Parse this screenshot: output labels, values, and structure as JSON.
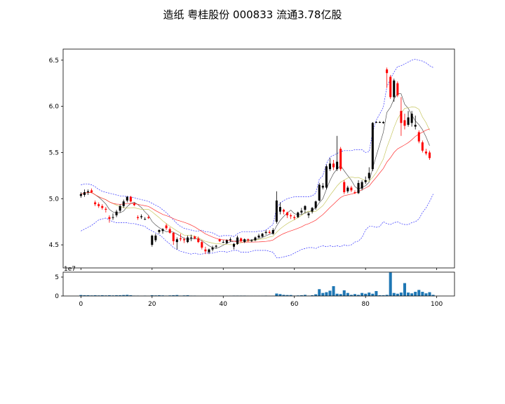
{
  "title": "造纸 粤桂股份 000833 流通3.78亿股",
  "chart_data": [
    {
      "type": "candlestick",
      "x_range": [
        -5,
        105
      ],
      "ylim": [
        4.25,
        6.62
      ],
      "yticks": [
        4.5,
        5.0,
        5.5,
        6.0,
        6.5
      ],
      "ytick_labels": [
        "4.5",
        "5.0",
        "5.5",
        "6.0",
        "6.5"
      ],
      "grid": false,
      "up_color": "#000000",
      "down_color": "#ff0000",
      "ohlc": [
        [
          5.03,
          5.07,
          5.01,
          5.05
        ],
        [
          5.04,
          5.1,
          5.02,
          5.07
        ],
        [
          5.07,
          5.1,
          5.04,
          5.08
        ],
        [
          5.09,
          5.11,
          5.06,
          5.07
        ],
        [
          4.96,
          4.98,
          4.92,
          4.94
        ],
        [
          4.94,
          4.96,
          4.9,
          4.92
        ],
        [
          4.92,
          4.94,
          4.88,
          4.9
        ],
        [
          4.89,
          4.91,
          4.85,
          4.88
        ],
        [
          4.8,
          4.82,
          4.74,
          4.78
        ],
        [
          4.8,
          4.84,
          4.77,
          4.8
        ],
        [
          4.82,
          4.88,
          4.8,
          4.86
        ],
        [
          4.87,
          4.94,
          4.85,
          4.92
        ],
        [
          4.92,
          4.99,
          4.9,
          4.97
        ],
        [
          4.98,
          5.03,
          4.96,
          5.02
        ],
        [
          5.02,
          5.03,
          4.96,
          4.97
        ],
        [
          4.95,
          4.96,
          4.92,
          4.93
        ],
        [
          4.8,
          4.82,
          4.77,
          4.79
        ],
        [
          4.8,
          4.83,
          4.78,
          4.81
        ],
        [
          4.78,
          4.8,
          4.77,
          4.78
        ],
        [
          4.8,
          4.82,
          4.78,
          4.79
        ],
        [
          4.5,
          4.61,
          4.48,
          4.6
        ],
        [
          4.55,
          4.62,
          4.53,
          4.6
        ],
        [
          4.64,
          4.67,
          4.62,
          4.66
        ],
        [
          4.65,
          4.68,
          4.62,
          4.67
        ],
        [
          4.71,
          4.73,
          4.66,
          4.68
        ],
        [
          4.67,
          4.69,
          4.62,
          4.63
        ],
        [
          4.63,
          4.64,
          4.5,
          4.54
        ],
        [
          4.53,
          4.58,
          4.45,
          4.56
        ],
        [
          4.57,
          4.62,
          4.54,
          4.56
        ],
        [
          4.56,
          4.58,
          4.52,
          4.55
        ],
        [
          4.53,
          4.6,
          4.52,
          4.58
        ],
        [
          4.58,
          4.61,
          4.54,
          4.58
        ],
        [
          4.59,
          4.6,
          4.56,
          4.57
        ],
        [
          4.57,
          4.59,
          4.52,
          4.53
        ],
        [
          4.53,
          4.55,
          4.45,
          4.47
        ],
        [
          4.45,
          4.48,
          4.4,
          4.43
        ],
        [
          4.42,
          4.46,
          4.4,
          4.45
        ],
        [
          4.45,
          4.49,
          4.43,
          4.47
        ],
        [
          4.48,
          4.5,
          4.46,
          4.49
        ],
        [
          4.56,
          4.57,
          4.53,
          4.54
        ],
        [
          4.53,
          4.55,
          4.52,
          4.53
        ],
        [
          4.52,
          4.56,
          4.51,
          4.55
        ],
        [
          4.55,
          4.58,
          4.53,
          4.56
        ],
        [
          4.48,
          4.52,
          4.45,
          4.51
        ],
        [
          4.51,
          4.6,
          4.5,
          4.58
        ],
        [
          4.57,
          4.58,
          4.53,
          4.54
        ],
        [
          4.53,
          4.57,
          4.52,
          4.56
        ],
        [
          4.56,
          4.57,
          4.53,
          4.55
        ],
        [
          4.54,
          4.56,
          4.53,
          4.55
        ],
        [
          4.55,
          4.59,
          4.54,
          4.58
        ],
        [
          4.58,
          4.62,
          4.57,
          4.6
        ],
        [
          4.59,
          4.63,
          4.58,
          4.62
        ],
        [
          4.63,
          4.66,
          4.61,
          4.64
        ],
        [
          4.64,
          4.66,
          4.62,
          4.63
        ],
        [
          4.62,
          4.68,
          4.61,
          4.66
        ],
        [
          4.75,
          5.08,
          4.73,
          4.98
        ],
        [
          4.86,
          4.96,
          4.83,
          4.91
        ],
        [
          4.88,
          4.89,
          4.83,
          4.86
        ],
        [
          4.85,
          4.86,
          4.79,
          4.82
        ],
        [
          4.82,
          4.84,
          4.78,
          4.81
        ],
        [
          4.8,
          4.82,
          4.77,
          4.79
        ],
        [
          4.8,
          4.86,
          4.79,
          4.85
        ],
        [
          4.85,
          4.9,
          4.83,
          4.87
        ],
        [
          4.88,
          4.93,
          4.84,
          4.92
        ],
        [
          4.82,
          4.85,
          4.79,
          4.84
        ],
        [
          4.86,
          4.91,
          4.84,
          4.9
        ],
        [
          4.9,
          4.98,
          4.88,
          4.97
        ],
        [
          4.98,
          5.17,
          4.97,
          5.15
        ],
        [
          5.12,
          5.17,
          5.1,
          5.14
        ],
        [
          5.12,
          5.37,
          5.1,
          5.35
        ],
        [
          5.32,
          5.44,
          5.3,
          5.38
        ],
        [
          5.38,
          5.42,
          5.31,
          5.34
        ],
        [
          5.32,
          5.68,
          5.3,
          5.4
        ],
        [
          5.54,
          5.56,
          5.3,
          5.32
        ],
        [
          5.18,
          5.2,
          5.05,
          5.07
        ],
        [
          5.08,
          5.14,
          5.06,
          5.12
        ],
        [
          5.12,
          5.14,
          5.07,
          5.09
        ],
        [
          5.07,
          5.09,
          5.05,
          5.06
        ],
        [
          5.06,
          5.2,
          5.05,
          5.17
        ],
        [
          5.11,
          5.2,
          5.09,
          5.18
        ],
        [
          5.18,
          5.24,
          5.16,
          5.2
        ],
        [
          5.22,
          5.34,
          5.2,
          5.28
        ],
        [
          5.32,
          5.83,
          5.3,
          5.82
        ],
        [
          5.83,
          5.84,
          5.82,
          5.83
        ],
        [
          5.83,
          5.84,
          5.82,
          5.83
        ],
        [
          5.82,
          5.84,
          5.81,
          5.83
        ],
        [
          6.4,
          6.42,
          6.2,
          6.36
        ],
        [
          6.32,
          6.34,
          6.08,
          6.1
        ],
        [
          6.1,
          6.3,
          6.05,
          6.28
        ],
        [
          6.25,
          6.27,
          6.1,
          6.12
        ],
        [
          5.95,
          6.1,
          5.68,
          5.82
        ],
        [
          5.85,
          5.92,
          5.75,
          5.79
        ],
        [
          5.8,
          5.95,
          5.78,
          5.88
        ],
        [
          5.82,
          5.95,
          5.78,
          5.92
        ],
        [
          5.78,
          5.9,
          5.75,
          5.8
        ],
        [
          5.72,
          5.74,
          5.6,
          5.62
        ],
        [
          5.61,
          5.63,
          5.5,
          5.52
        ],
        [
          5.51,
          5.54,
          5.47,
          5.49
        ],
        [
          5.5,
          5.52,
          5.42,
          5.44
        ]
      ],
      "ma_colors": [
        "#555555",
        "#c8c864",
        "#ff3030"
      ],
      "band_color": "#3030ff",
      "band_upper": [
        5.15,
        5.16,
        5.16,
        5.15,
        5.13,
        5.1,
        5.08,
        5.07,
        5.06,
        5.05,
        5.04,
        5.03,
        5.03,
        5.02,
        5.02,
        5.01,
        5.0,
        4.99,
        4.98,
        4.97,
        4.95,
        4.93,
        4.91,
        4.88,
        4.85,
        4.81,
        4.77,
        4.73,
        4.7,
        4.68,
        4.67,
        4.66,
        4.65,
        4.65,
        4.66,
        4.64,
        4.64,
        4.63,
        4.61,
        4.59,
        4.6,
        4.6,
        4.6,
        4.59,
        4.62,
        4.64,
        4.64,
        4.64,
        4.64,
        4.64,
        4.65,
        4.65,
        4.66,
        4.69,
        4.72,
        4.9,
        4.95,
        4.98,
        5.0,
        5.01,
        5.02,
        5.02,
        5.02,
        5.02,
        5.02,
        5.03,
        5.06,
        5.21,
        5.25,
        5.38,
        5.45,
        5.47,
        5.49,
        5.51,
        5.52,
        5.52,
        5.52,
        5.53,
        5.53,
        5.53,
        5.5,
        5.51,
        5.72,
        5.85,
        5.92,
        5.99,
        6.21,
        6.3,
        6.37,
        6.43,
        6.44,
        6.46,
        6.48,
        6.5,
        6.51,
        6.5,
        6.49,
        6.47,
        6.44,
        6.42
      ],
      "band_lower": [
        4.65,
        4.67,
        4.69,
        4.71,
        4.74,
        4.77,
        4.78,
        4.79,
        4.77,
        4.75,
        4.74,
        4.74,
        4.74,
        4.74,
        4.73,
        4.73,
        4.72,
        4.71,
        4.7,
        4.67,
        4.65,
        4.63,
        4.61,
        4.58,
        4.54,
        4.51,
        4.47,
        4.45,
        4.43,
        4.42,
        4.41,
        4.4,
        4.41,
        4.4,
        4.4,
        4.41,
        4.41,
        4.41,
        4.42,
        4.43,
        4.43,
        4.42,
        4.43,
        4.44,
        4.44,
        4.42,
        4.42,
        4.42,
        4.43,
        4.44,
        4.44,
        4.44,
        4.44,
        4.43,
        4.42,
        4.36,
        4.36,
        4.37,
        4.38,
        4.39,
        4.41,
        4.43,
        4.45,
        4.46,
        4.47,
        4.47,
        4.46,
        4.48,
        4.49,
        4.48,
        4.49,
        4.48,
        4.49,
        4.48,
        4.5,
        4.49,
        4.5,
        4.53,
        4.54,
        4.58,
        4.66,
        4.7,
        4.7,
        4.69,
        4.7,
        4.75,
        4.73,
        4.72,
        4.74,
        4.75,
        4.73,
        4.72,
        4.72,
        4.74,
        4.75,
        4.78,
        4.85,
        4.9,
        4.97,
        5.05
      ]
    },
    {
      "type": "bar",
      "x_range": [
        -5,
        105
      ],
      "ylim": [
        0,
        6.3
      ],
      "yticks": [
        0,
        5
      ],
      "ytick_labels": [
        "0",
        "5"
      ],
      "offset_text": "1e7",
      "xticks": [
        0,
        20,
        40,
        60,
        80,
        100
      ],
      "xtick_labels": [
        "0",
        "20",
        "40",
        "60",
        "80",
        "100"
      ],
      "bar_color": "#1f77b4",
      "values": [
        0.25,
        0.2,
        0.2,
        0.15,
        0.2,
        0.15,
        0.2,
        0.15,
        0.2,
        0.15,
        0.2,
        0.2,
        0.25,
        0.3,
        0.2,
        0.1,
        0.1,
        0.05,
        0.1,
        0.05,
        0.2,
        0.15,
        0.2,
        0.15,
        0.1,
        0.15,
        0.2,
        0.25,
        0.1,
        0.15,
        0.2,
        0.1,
        0.1,
        0.05,
        0.05,
        0.05,
        0.05,
        0.05,
        0.05,
        0.05,
        0.05,
        0.05,
        0.05,
        0.1,
        0.1,
        0.1,
        0.1,
        0.05,
        0.05,
        0.05,
        0.05,
        0.05,
        0.1,
        0.05,
        0.05,
        0.65,
        0.5,
        0.3,
        0.25,
        0.25,
        0.1,
        0.15,
        0.2,
        0.3,
        0.1,
        0.2,
        0.45,
        1.8,
        0.8,
        1.0,
        1.4,
        2.6,
        0.6,
        0.5,
        1.5,
        0.8,
        0.3,
        0.5,
        0.3,
        0.8,
        0.6,
        0.9,
        0.6,
        1.3,
        0.2,
        0.2,
        0.3,
        6.2,
        0.8,
        0.6,
        0.9,
        3.4,
        0.9,
        0.7,
        1.1,
        1.6,
        1.1,
        0.7,
        1.0,
        0.3
      ]
    }
  ]
}
